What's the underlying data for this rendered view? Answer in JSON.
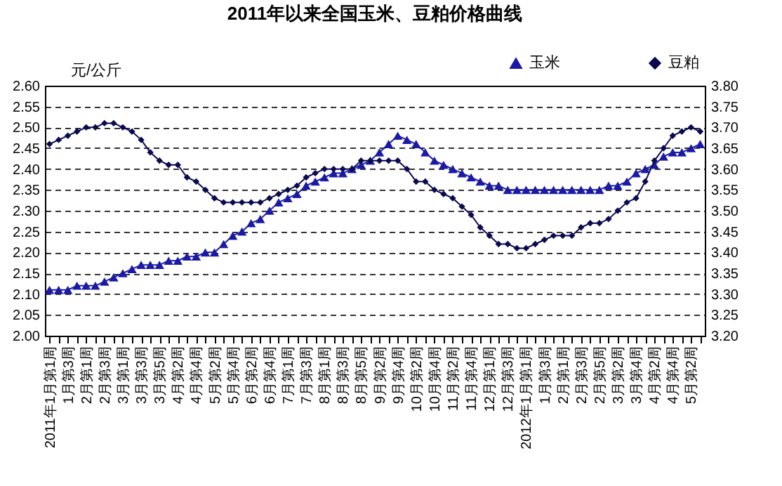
{
  "chart_data": {
    "type": "line",
    "title": "2011年以来全国玉米、豆粕价格曲线",
    "ylabel": "元/公斤",
    "categories": [
      "2011年1月第1周",
      null,
      "1月第3周",
      null,
      "2月第1周",
      null,
      "2月第3周",
      null,
      "3月第1周",
      null,
      "3月第3周",
      null,
      "3月第5周",
      null,
      "4月第2周",
      null,
      "4月第4周",
      null,
      "5月第2周",
      null,
      "5月第4周",
      null,
      "6月第2周",
      null,
      "6月第4周",
      null,
      "7月第1周",
      null,
      "7月第3周",
      null,
      "8月第1周",
      null,
      "8月第3周",
      null,
      "8月第5周",
      null,
      "9月第2周",
      null,
      "9月第4周",
      null,
      "10月第2周",
      null,
      "10月第4周",
      null,
      "11月第2周",
      null,
      "11月第4周",
      null,
      "12月第1周",
      null,
      "12月第3周",
      null,
      "2012年1月第1周",
      null,
      "1月第3周",
      null,
      "2月第1周",
      null,
      "2月第3周",
      null,
      "2月第5周",
      null,
      "3月第2周",
      null,
      "3月第4周",
      null,
      "4月第2周",
      null,
      "4月第4周",
      null,
      "5月第2周",
      null
    ],
    "series": [
      {
        "name": "玉米",
        "color": "#1a1aa6",
        "marker": "triangle",
        "values": [
          2.11,
          2.11,
          2.11,
          2.12,
          2.12,
          2.12,
          2.13,
          2.14,
          2.15,
          2.16,
          2.17,
          2.17,
          2.17,
          2.18,
          2.18,
          2.19,
          2.19,
          2.2,
          2.2,
          2.22,
          2.24,
          2.25,
          2.27,
          2.28,
          2.3,
          2.32,
          2.33,
          2.34,
          2.36,
          2.37,
          2.38,
          2.39,
          2.39,
          2.4,
          2.41,
          2.42,
          2.44,
          2.46,
          2.48,
          2.47,
          2.46,
          2.44,
          2.42,
          2.41,
          2.4,
          2.39,
          2.38,
          2.37,
          2.36,
          2.36,
          2.35,
          2.35,
          2.35,
          2.35,
          2.35,
          2.35,
          2.35,
          2.35,
          2.35,
          2.35,
          2.35,
          2.36,
          2.36,
          2.37,
          2.39,
          2.4,
          2.41,
          2.43,
          2.44,
          2.44,
          2.45,
          2.46
        ]
      },
      {
        "name": "豆粕",
        "color": "#0a0a50",
        "marker": "diamond",
        "axis": "y2",
        "values": [
          3.66,
          3.67,
          3.68,
          3.69,
          3.7,
          3.7,
          3.71,
          3.71,
          3.7,
          3.69,
          3.67,
          3.64,
          3.62,
          3.61,
          3.61,
          3.58,
          3.57,
          3.55,
          3.53,
          3.52,
          3.52,
          3.52,
          3.52,
          3.52,
          3.53,
          3.54,
          3.55,
          3.56,
          3.58,
          3.59,
          3.6,
          3.6,
          3.6,
          3.6,
          3.62,
          3.62,
          3.62,
          3.62,
          3.62,
          3.6,
          3.57,
          3.57,
          3.55,
          3.54,
          3.53,
          3.51,
          3.49,
          3.46,
          3.44,
          3.42,
          3.42,
          3.41,
          3.41,
          3.42,
          3.43,
          3.44,
          3.44,
          3.44,
          3.46,
          3.47,
          3.47,
          3.48,
          3.5,
          3.52,
          3.53,
          3.57,
          3.62,
          3.65,
          3.68,
          3.69,
          3.7,
          3.69
        ]
      }
    ],
    "ylim": [
      2.0,
      2.6
    ],
    "yticks": [
      {
        "value": 2,
        "label": "2.00"
      },
      2.05,
      {
        "value": 2.1,
        "label": "2.10"
      },
      2.15,
      {
        "value": 2.2,
        "label": "2.20"
      },
      2.25,
      {
        "value": 2.3,
        "label": "2.30"
      },
      2.35,
      {
        "value": 2.4,
        "label": "2.40"
      },
      2.45,
      {
        "value": 2.5,
        "label": "2.50"
      },
      2.55,
      {
        "value": 2.6,
        "label": "2.60"
      }
    ],
    "y2lim": [
      3.2,
      3.8
    ],
    "y2ticks": [
      {
        "value": 3.2,
        "label": "3.20"
      },
      3.25,
      {
        "value": 3.3,
        "label": "3.30"
      },
      3.35,
      {
        "value": 3.4,
        "label": "3.40"
      },
      3.45,
      {
        "value": 3.5,
        "label": "3.50"
      },
      3.55,
      {
        "value": 3.6,
        "label": "3.60"
      },
      3.65,
      {
        "value": 3.7,
        "label": "3.70"
      },
      3.75,
      {
        "value": 3.8,
        "label": "3.80"
      }
    ],
    "grid": "y",
    "legend": "top right"
  }
}
